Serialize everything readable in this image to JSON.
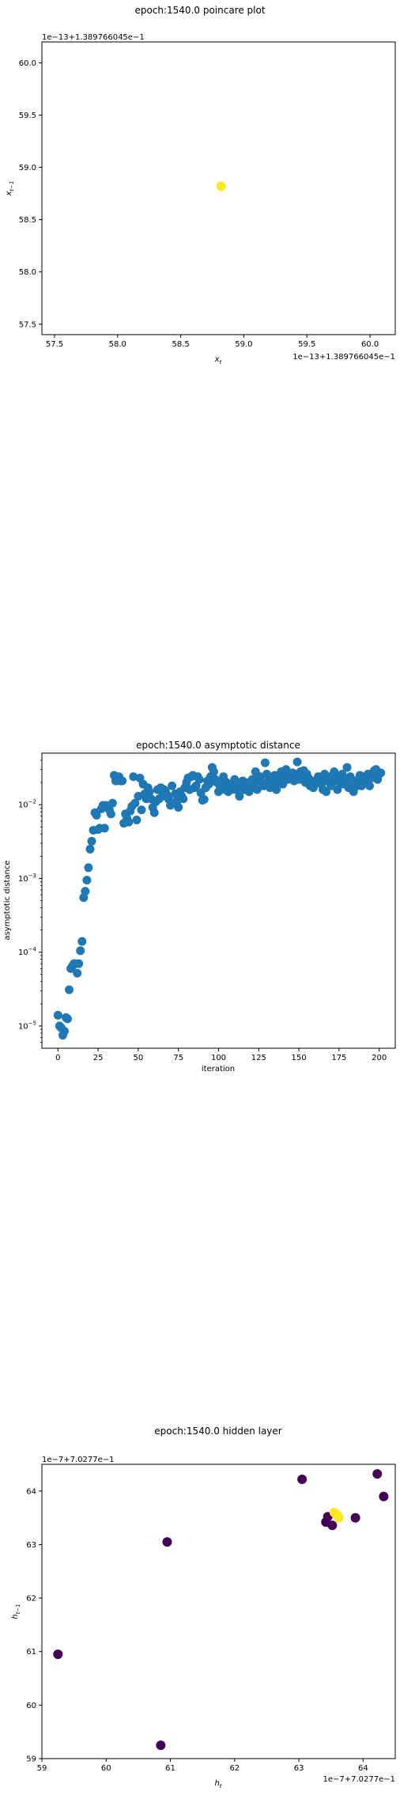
{
  "chart_data": [
    {
      "type": "scatter",
      "title": "epoch:1540.0 poincare plot",
      "xlabel": "x_t",
      "ylabel": "x_{t-1}",
      "offset_x": "1e−13+1.389766045e−1",
      "offset_y": "1e−13+1.389766045e−1",
      "xlim": [
        57.4,
        60.2
      ],
      "ylim": [
        57.4,
        60.2
      ],
      "xticks": [
        57.5,
        58.0,
        58.5,
        59.0,
        59.5,
        60.0
      ],
      "yticks": [
        57.5,
        58.0,
        58.5,
        59.0,
        59.5,
        60.0
      ],
      "xticklabels": [
        "57.5",
        "58.0",
        "58.5",
        "59.0",
        "59.5",
        "60.0"
      ],
      "yticklabels": [
        "57.5",
        "58.0",
        "58.5",
        "59.0",
        "59.5",
        "60.0"
      ],
      "points": [
        {
          "x": 58.82,
          "y": 58.82
        }
      ],
      "point_color": "#fde725",
      "grid": false
    },
    {
      "type": "scatter",
      "title": "epoch:1540.0 asymptotic distance",
      "xlabel": "iteration",
      "ylabel": "asymptotic distance",
      "yscale": "log",
      "xlim": [
        -10,
        210
      ],
      "ylim": [
        5e-06,
        0.05
      ],
      "xticks": [
        0,
        25,
        50,
        75,
        100,
        125,
        150,
        175,
        200
      ],
      "xticklabels": [
        "0",
        "25",
        "50",
        "75",
        "100",
        "125",
        "150",
        "175",
        "200"
      ],
      "ytick_exponents": [
        -5,
        -4,
        -3,
        -2
      ],
      "point_color": "#1f77b4",
      "grid": false,
      "y": [
        1.4e-05,
        1e-05,
        9.5e-06,
        7.5e-06,
        8.5e-06,
        1.3e-05,
        1.25e-05,
        3.1e-05,
        6e-05,
        6.5e-05,
        7e-05,
        7e-05,
        5.2e-05,
        7e-05,
        0.000105,
        0.00014,
        0.00055,
        0.00067,
        0.00095,
        0.0014,
        0.0025,
        0.0032,
        0.0045,
        0.0078,
        0.0072,
        0.0046,
        0.0048,
        0.0088,
        0.0098,
        0.0048,
        0.0098,
        0.0092,
        0.0085,
        0.0075,
        0.0105,
        0.025,
        0.021,
        0.023,
        0.024,
        0.021,
        0.021,
        0.0056,
        0.0075,
        0.0065,
        0.0058,
        0.0082,
        0.0095,
        0.024,
        0.0105,
        0.0062,
        0.013,
        0.023,
        0.0085,
        0.019,
        0.014,
        0.012,
        0.017,
        0.015,
        0.012,
        0.0092,
        0.0078,
        0.011,
        0.016,
        0.012,
        0.017,
        0.013,
        0.016,
        0.015,
        0.0135,
        0.0118,
        0.0098,
        0.018,
        0.0105,
        0.014,
        0.011,
        0.0092,
        0.015,
        0.013,
        0.012,
        0.017,
        0.02,
        0.023,
        0.016,
        0.024,
        0.025,
        0.017,
        0.018,
        0.024,
        0.022,
        0.0145,
        0.0115,
        0.0118,
        0.017,
        0.021,
        0.019,
        0.024,
        0.032,
        0.028,
        0.022,
        0.02,
        0.015,
        0.017,
        0.019,
        0.024,
        0.016,
        0.02,
        0.015,
        0.018,
        0.016,
        0.019,
        0.022,
        0.016,
        0.018,
        0.013,
        0.019,
        0.021,
        0.016,
        0.02,
        0.017,
        0.015,
        0.017,
        0.022,
        0.019,
        0.028,
        0.016,
        0.022,
        0.024,
        0.02,
        0.018,
        0.037,
        0.026,
        0.021,
        0.017,
        0.023,
        0.019,
        0.025,
        0.016,
        0.02,
        0.023,
        0.028,
        0.019,
        0.024,
        0.03,
        0.022,
        0.026,
        0.024,
        0.027,
        0.021,
        0.026,
        0.038,
        0.022,
        0.028,
        0.025,
        0.029,
        0.02,
        0.026,
        0.023,
        0.018,
        0.021,
        0.017,
        0.019,
        0.02,
        0.024,
        0.022,
        0.019,
        0.016,
        0.026,
        0.015,
        0.022,
        0.02,
        0.018,
        0.025,
        0.028,
        0.021,
        0.016,
        0.023,
        0.02,
        0.026,
        0.019,
        0.022,
        0.032,
        0.017,
        0.024,
        0.021,
        0.015,
        0.02,
        0.018,
        0.022,
        0.025,
        0.018,
        0.021,
        0.024,
        0.02,
        0.026,
        0.018,
        0.023,
        0.027,
        0.029,
        0.03,
        0.022,
        0.026,
        0.027
      ]
    },
    {
      "type": "scatter",
      "title": "epoch:1540.0 hidden layer",
      "xlabel": "h_t",
      "ylabel": "h_{t-1}",
      "offset_x": "1e−7+7.0277e−1",
      "offset_y": "1e−7+7.0277e−1",
      "xlim": [
        59.0,
        64.5
      ],
      "ylim": [
        59.0,
        64.5
      ],
      "xticks": [
        59,
        60,
        61,
        62,
        63,
        64
      ],
      "yticks": [
        59,
        60,
        61,
        62,
        63,
        64
      ],
      "xticklabels": [
        "59",
        "60",
        "61",
        "62",
        "63",
        "64"
      ],
      "yticklabels": [
        "59",
        "60",
        "61",
        "62",
        "63",
        "64"
      ],
      "colors": {
        "dark": "#440154",
        "bright": "#fde725"
      },
      "grid": false,
      "points": [
        {
          "x": 59.25,
          "y": 60.95,
          "c": "dark"
        },
        {
          "x": 60.85,
          "y": 59.25,
          "c": "dark"
        },
        {
          "x": 60.95,
          "y": 63.05,
          "c": "dark"
        },
        {
          "x": 63.05,
          "y": 64.22,
          "c": "dark"
        },
        {
          "x": 63.42,
          "y": 63.42,
          "c": "dark"
        },
        {
          "x": 63.45,
          "y": 63.52,
          "c": "dark"
        },
        {
          "x": 63.52,
          "y": 63.36,
          "c": "dark"
        },
        {
          "x": 63.88,
          "y": 63.5,
          "c": "dark"
        },
        {
          "x": 64.22,
          "y": 64.32,
          "c": "dark"
        },
        {
          "x": 64.32,
          "y": 63.9,
          "c": "dark"
        },
        {
          "x": 63.6,
          "y": 63.55,
          "c": "bright"
        },
        {
          "x": 63.55,
          "y": 63.6,
          "c": "bright"
        },
        {
          "x": 63.62,
          "y": 63.5,
          "c": "bright"
        }
      ]
    }
  ]
}
